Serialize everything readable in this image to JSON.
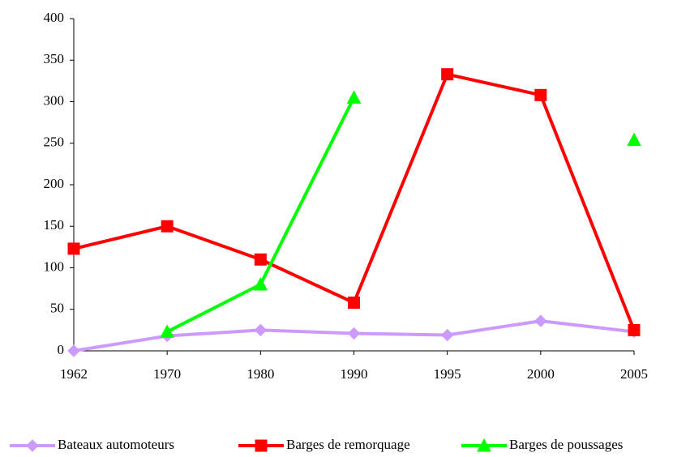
{
  "chart_data": {
    "type": "line",
    "categories": [
      "1962",
      "1970",
      "1980",
      "1990",
      "1995",
      "2000",
      "2005"
    ],
    "series": [
      {
        "name": "Bateaux automoteurs",
        "color": "#cc99ff",
        "marker": "diamond",
        "values": [
          0,
          18,
          25,
          21,
          19,
          36,
          23
        ]
      },
      {
        "name": "Barges de remorquage",
        "color": "#ff0000",
        "marker": "square",
        "values": [
          123,
          150,
          110,
          58,
          333,
          308,
          25
        ]
      },
      {
        "name": "Barges de poussages",
        "color": "#00ff00",
        "marker": "triangle",
        "values": [
          null,
          23,
          80,
          305,
          null,
          null,
          254
        ]
      }
    ],
    "ylim": [
      0,
      400
    ],
    "yticks": [
      0,
      50,
      100,
      150,
      200,
      250,
      300,
      350,
      400
    ],
    "grid": false,
    "legend": "bottom"
  }
}
